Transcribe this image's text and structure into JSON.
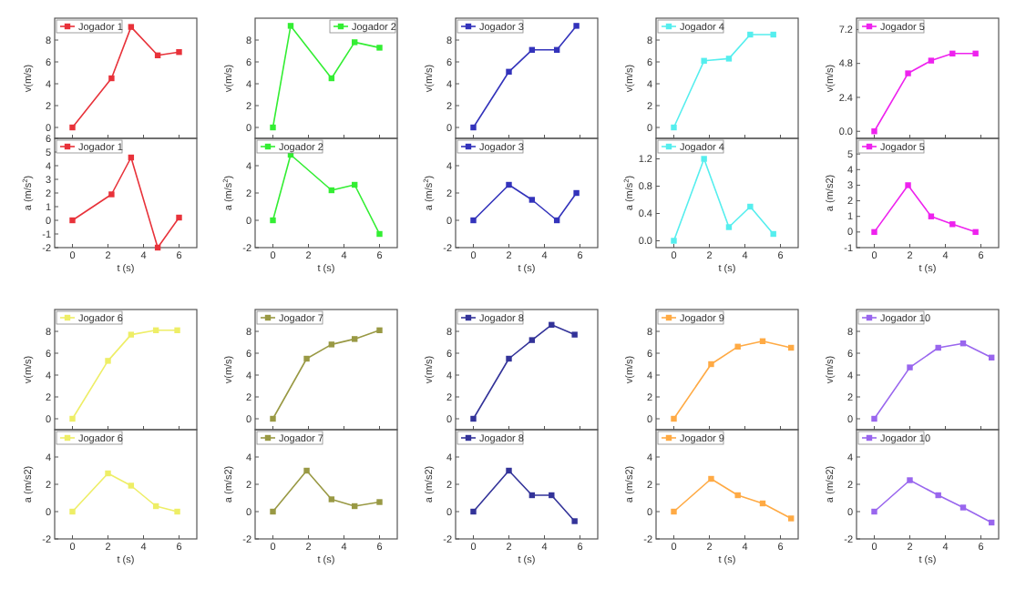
{
  "chart_data": [
    {
      "type": "line",
      "ylabel": "v(m/s)",
      "x": [
        0,
        2.2,
        3.3,
        4.8,
        6
      ],
      "xlim": [
        -1,
        7
      ],
      "xticks": [
        0,
        2,
        4,
        6
      ],
      "ylim": [
        -1,
        10
      ],
      "yticks": [
        0,
        2,
        4,
        6,
        8
      ],
      "tick_labels": "y",
      "legend": "top left",
      "marker": "square",
      "series": [
        {
          "name": "Jogador 1",
          "color": "#e8323a",
          "values": [
            0,
            4.5,
            9.2,
            6.6,
            6.9
          ]
        }
      ]
    },
    {
      "type": "line",
      "ylabel": "a (m/s$^{2}$)",
      "xlabel": "t (s)",
      "x": [
        0,
        2.2,
        3.3,
        4.8,
        6
      ],
      "xlim": [
        -1,
        7
      ],
      "xticks": [
        0,
        2,
        4,
        6
      ],
      "ylim": [
        -2,
        6
      ],
      "yticks": [
        -2,
        -1,
        0,
        1,
        2,
        3,
        4,
        5,
        6
      ],
      "legend": "top left",
      "marker": "square",
      "series": [
        {
          "name": "Jogador 1",
          "color": "#e8323a",
          "values": [
            0,
            1.9,
            4.6,
            -2,
            0.2
          ]
        }
      ]
    },
    {
      "type": "line",
      "ylabel": "v(m/s)",
      "x": [
        0,
        1,
        3.3,
        4.6,
        6
      ],
      "xlim": [
        -1,
        7
      ],
      "xticks": [
        0,
        2,
        4,
        6
      ],
      "ylim": [
        -1,
        10
      ],
      "yticks": [
        0,
        2,
        4,
        6,
        8
      ],
      "tick_labels": "y",
      "legend": "top right",
      "marker": "square",
      "series": [
        {
          "name": "Jogador 2",
          "color": "#33ee33",
          "values": [
            0,
            9.3,
            4.5,
            7.8,
            7.3
          ]
        }
      ]
    },
    {
      "type": "line",
      "ylabel": "a (m/s$^{2}$)",
      "xlabel": "t (s)",
      "x": [
        0,
        1,
        3.3,
        4.6,
        6
      ],
      "xlim": [
        -1,
        7
      ],
      "xticks": [
        0,
        2,
        4,
        6
      ],
      "ylim": [
        -2,
        6
      ],
      "yticks": [
        -2,
        0,
        2,
        4
      ],
      "legend": "top left",
      "marker": "square",
      "series": [
        {
          "name": "Jogador 2",
          "color": "#33ee33",
          "values": [
            0,
            4.8,
            2.2,
            2.6,
            -1
          ]
        }
      ]
    },
    {
      "type": "line",
      "ylabel": "v(m/s)",
      "x": [
        0,
        2,
        3.3,
        4.7,
        5.8
      ],
      "xlim": [
        -1,
        7
      ],
      "xticks": [
        0,
        2,
        4,
        6
      ],
      "ylim": [
        -1,
        10
      ],
      "yticks": [
        0,
        2,
        4,
        6,
        8
      ],
      "tick_labels": "y",
      "legend": "top left",
      "marker": "square",
      "series": [
        {
          "name": "Jogador 3",
          "color": "#3333bb",
          "values": [
            0,
            5.1,
            7.1,
            7.1,
            9.3
          ]
        }
      ]
    },
    {
      "type": "line",
      "ylabel": "a (m/s$^{2}$)",
      "xlabel": "t (s)",
      "x": [
        0,
        2,
        3.3,
        4.7,
        5.8
      ],
      "xlim": [
        -1,
        7
      ],
      "xticks": [
        0,
        2,
        4,
        6
      ],
      "ylim": [
        -2,
        6
      ],
      "yticks": [
        -2,
        0,
        2,
        4
      ],
      "legend": "top left",
      "marker": "square",
      "series": [
        {
          "name": "Jogador 3",
          "color": "#3333bb",
          "values": [
            0,
            2.6,
            1.5,
            0,
            2
          ]
        }
      ]
    },
    {
      "type": "line",
      "ylabel": "v(m/s)",
      "x": [
        0,
        1.7,
        3.1,
        4.3,
        5.6
      ],
      "xlim": [
        -1,
        7
      ],
      "xticks": [
        0,
        2,
        4,
        6
      ],
      "ylim": [
        -1,
        10
      ],
      "yticks": [
        0,
        2,
        4,
        6,
        8
      ],
      "tick_labels": "y",
      "legend": "top left",
      "marker": "square",
      "series": [
        {
          "name": "Jogador 4",
          "color": "#55eeee",
          "values": [
            0,
            6.1,
            6.3,
            8.5,
            8.5
          ]
        }
      ]
    },
    {
      "type": "line",
      "ylabel": "a (m/s$^{2}$)",
      "xlabel": "t (s)",
      "x": [
        0,
        1.7,
        3.1,
        4.3,
        5.6
      ],
      "xlim": [
        -1,
        7
      ],
      "xticks": [
        0,
        2,
        4,
        6
      ],
      "ylim": [
        -0.1,
        1.5
      ],
      "yticks": [
        {
          "value": 0,
          "label": "0.0"
        },
        {
          "value": 0.4,
          "label": "0.4"
        },
        {
          "value": 0.8,
          "label": "0.8"
        },
        {
          "value": 1.2,
          "label": "1.2"
        }
      ],
      "legend": "top left",
      "marker": "square",
      "series": [
        {
          "name": "Jogador 4",
          "color": "#55eeee",
          "values": [
            0,
            1.2,
            0.2,
            0.5,
            0.1
          ]
        }
      ]
    },
    {
      "type": "line",
      "ylabel": "v(m/s)",
      "x": [
        0,
        1.9,
        3.2,
        4.4,
        5.7
      ],
      "xlim": [
        -1,
        7
      ],
      "xticks": [
        0,
        2,
        4,
        6
      ],
      "ylim": [
        -0.5,
        8
      ],
      "yticks": [
        {
          "value": 0,
          "label": "0.0"
        },
        {
          "value": 2.4,
          "label": "2.4"
        },
        {
          "value": 4.8,
          "label": "4.8"
        },
        {
          "value": 7.2,
          "label": "7.2"
        }
      ],
      "tick_labels": "y",
      "legend": "top left",
      "marker": "square",
      "series": [
        {
          "name": "Jogador 5",
          "color": "#ee22ee",
          "values": [
            0,
            4.1,
            5.0,
            5.5,
            5.5
          ]
        }
      ]
    },
    {
      "type": "line",
      "ylabel": "a (m/s2)",
      "xlabel": "t (s)",
      "x": [
        0,
        1.9,
        3.2,
        4.4,
        5.7
      ],
      "xlim": [
        -1,
        7
      ],
      "xticks": [
        0,
        2,
        4,
        6
      ],
      "ylim": [
        -1,
        6
      ],
      "yticks": [
        -1,
        0,
        1,
        2,
        3,
        4,
        5
      ],
      "legend": "top left",
      "marker": "square",
      "series": [
        {
          "name": "Jogador 5",
          "color": "#ee22ee",
          "values": [
            0,
            3,
            1,
            0.5,
            0
          ]
        }
      ]
    },
    {
      "type": "line",
      "ylabel": "v(m/s)",
      "x": [
        0,
        2,
        3.3,
        4.7,
        5.9
      ],
      "xlim": [
        -1,
        7
      ],
      "xticks": [
        0,
        2,
        4,
        6
      ],
      "ylim": [
        -1,
        10
      ],
      "yticks": [
        0,
        2,
        4,
        6,
        8
      ],
      "tick_labels": "y",
      "legend": "top left",
      "marker": "square",
      "series": [
        {
          "name": "Jogador 6",
          "color": "#eeee66",
          "values": [
            0,
            5.3,
            7.7,
            8.1,
            8.1
          ]
        }
      ]
    },
    {
      "type": "line",
      "ylabel": "a (m/s2)",
      "xlabel": "t (s)",
      "x": [
        0,
        2,
        3.3,
        4.7,
        5.9
      ],
      "xlim": [
        -1,
        7
      ],
      "xticks": [
        0,
        2,
        4,
        6
      ],
      "ylim": [
        -2,
        6
      ],
      "yticks": [
        -2,
        0,
        2,
        4
      ],
      "legend": "top left",
      "marker": "square",
      "series": [
        {
          "name": "Jogador 6",
          "color": "#eeee66",
          "values": [
            0,
            2.8,
            1.9,
            0.4,
            0
          ]
        }
      ]
    },
    {
      "type": "line",
      "ylabel": "v(m/s)",
      "x": [
        0,
        1.9,
        3.3,
        4.6,
        6
      ],
      "xlim": [
        -1,
        7
      ],
      "xticks": [
        0,
        2,
        4,
        6
      ],
      "ylim": [
        -1,
        10
      ],
      "yticks": [
        0,
        2,
        4,
        6,
        8
      ],
      "tick_labels": "y",
      "legend": "top left",
      "marker": "square",
      "series": [
        {
          "name": "Jogador 7",
          "color": "#999944",
          "values": [
            0,
            5.5,
            6.8,
            7.3,
            8.1
          ]
        }
      ]
    },
    {
      "type": "line",
      "ylabel": "a (m/s2)",
      "xlabel": "t (s)",
      "x": [
        0,
        1.9,
        3.3,
        4.6,
        6
      ],
      "xlim": [
        -1,
        7
      ],
      "xticks": [
        0,
        2,
        4,
        6
      ],
      "ylim": [
        -2,
        6
      ],
      "yticks": [
        -2,
        0,
        2,
        4
      ],
      "legend": "top left",
      "marker": "square",
      "series": [
        {
          "name": "Jogador 7",
          "color": "#999944",
          "values": [
            0,
            3,
            0.9,
            0.4,
            0.7
          ]
        }
      ]
    },
    {
      "type": "line",
      "ylabel": "v(m/s)",
      "x": [
        0,
        2,
        3.3,
        4.4,
        5.7
      ],
      "xlim": [
        -1,
        7
      ],
      "xticks": [
        0,
        2,
        4,
        6
      ],
      "ylim": [
        -1,
        10
      ],
      "yticks": [
        0,
        2,
        4,
        6,
        8
      ],
      "tick_labels": "y",
      "legend": "top left",
      "marker": "square",
      "series": [
        {
          "name": "Jogador 8",
          "color": "#333399",
          "values": [
            0,
            5.5,
            7.2,
            8.6,
            7.7
          ]
        }
      ]
    },
    {
      "type": "line",
      "ylabel": "a (m/s2)",
      "xlabel": "t (s)",
      "x": [
        0,
        2,
        3.3,
        4.4,
        5.7
      ],
      "xlim": [
        -1,
        7
      ],
      "xticks": [
        0,
        2,
        4,
        6
      ],
      "ylim": [
        -2,
        6
      ],
      "yticks": [
        -2,
        0,
        2,
        4
      ],
      "legend": "top left",
      "marker": "square",
      "series": [
        {
          "name": "Jogador 8",
          "color": "#333399",
          "values": [
            0,
            3,
            1.2,
            1.2,
            -0.7
          ]
        }
      ]
    },
    {
      "type": "line",
      "ylabel": "v(m/s)",
      "x": [
        0,
        2.1,
        3.6,
        5,
        6.6
      ],
      "xlim": [
        -1,
        7
      ],
      "xticks": [
        0,
        2,
        4,
        6
      ],
      "ylim": [
        -1,
        10
      ],
      "yticks": [
        0,
        2,
        4,
        6,
        8
      ],
      "tick_labels": "y",
      "legend": "top left",
      "marker": "square",
      "series": [
        {
          "name": "Jogador 9",
          "color": "#ffaa44",
          "values": [
            0,
            5,
            6.6,
            7.1,
            6.5
          ]
        }
      ]
    },
    {
      "type": "line",
      "ylabel": "a (m/s2)",
      "xlabel": "t (s)",
      "x": [
        0,
        2.1,
        3.6,
        5,
        6.6
      ],
      "xlim": [
        -1,
        7
      ],
      "xticks": [
        0,
        2,
        4,
        6
      ],
      "ylim": [
        -2,
        6
      ],
      "yticks": [
        -2,
        0,
        2,
        4
      ],
      "legend": "top left",
      "marker": "square",
      "series": [
        {
          "name": "Jogador 9",
          "color": "#ffaa44",
          "values": [
            0,
            2.4,
            1.2,
            0.6,
            -0.5
          ]
        }
      ]
    },
    {
      "type": "line",
      "ylabel": "v(m/s)",
      "x": [
        0,
        2,
        3.6,
        5,
        6.6
      ],
      "xlim": [
        -1,
        7
      ],
      "xticks": [
        0,
        2,
        4,
        6
      ],
      "ylim": [
        -1,
        10
      ],
      "yticks": [
        0,
        2,
        4,
        6,
        8
      ],
      "tick_labels": "y",
      "legend": "top left",
      "marker": "square",
      "series": [
        {
          "name": "Jogador 10",
          "color": "#9966ee",
          "values": [
            0,
            4.7,
            6.5,
            6.9,
            5.6
          ]
        }
      ]
    },
    {
      "type": "line",
      "ylabel": "a (m/s2)",
      "xlabel": "t (s)",
      "x": [
        0,
        2,
        3.6,
        5,
        6.6
      ],
      "xlim": [
        -1,
        7
      ],
      "xticks": [
        0,
        2,
        4,
        6
      ],
      "ylim": [
        -2,
        6
      ],
      "yticks": [
        -2,
        0,
        2,
        4
      ],
      "legend": "top left",
      "marker": "square",
      "series": [
        {
          "name": "Jogador 10",
          "color": "#9966ee",
          "values": [
            0,
            2.3,
            1.2,
            0.3,
            -0.8
          ]
        }
      ]
    }
  ]
}
